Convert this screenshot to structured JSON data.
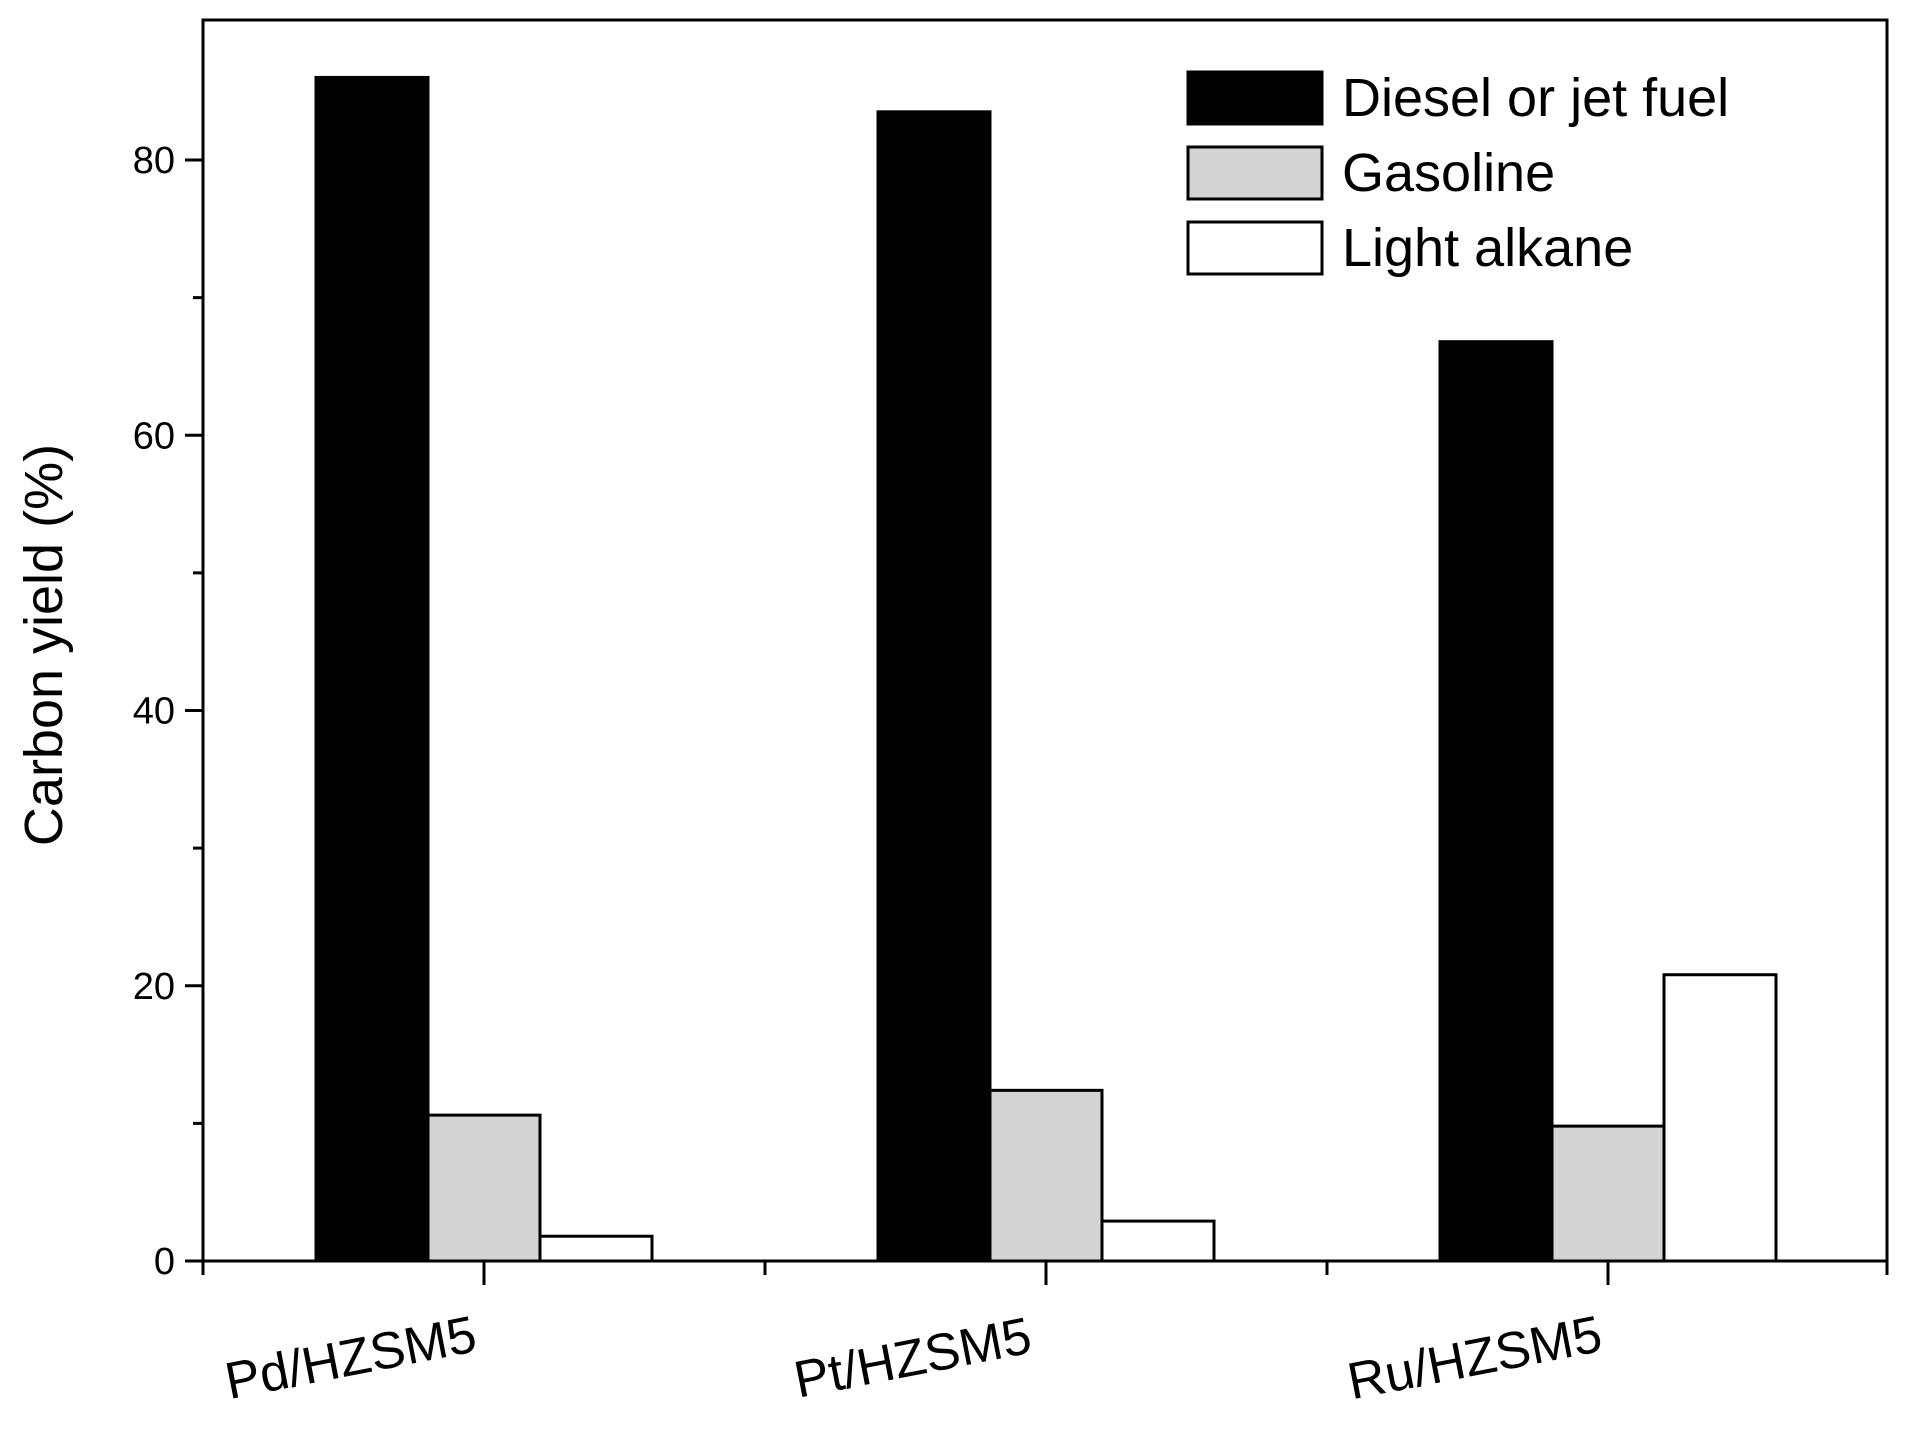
{
  "chart_data": {
    "type": "bar",
    "title": "",
    "xlabel": "",
    "ylabel": "Carbon yield (%)",
    "ylim": [
      0,
      90
    ],
    "yticks": [
      0,
      20,
      40,
      60,
      80
    ],
    "ytick_labels": [
      "0",
      "20",
      "40",
      "60",
      "80"
    ],
    "categories": [
      "Pd/HZSM5",
      "Pt/HZSM5",
      "Ru/HZSM5"
    ],
    "series": [
      {
        "name": "Diesel or jet fuel",
        "color": "#000000",
        "values": [
          86.0,
          83.5,
          66.8
        ]
      },
      {
        "name": "Gasoline",
        "color": "#d3d3d3",
        "values": [
          10.6,
          12.4,
          9.8
        ]
      },
      {
        "name": "Light alkane",
        "color": "#ffffff",
        "values": [
          1.8,
          2.9,
          20.8
        ]
      }
    ],
    "legend_position": "top-right",
    "grid": false
  }
}
